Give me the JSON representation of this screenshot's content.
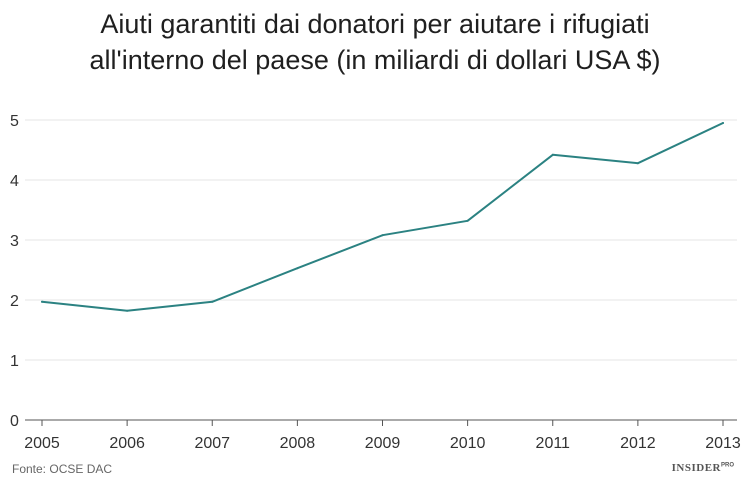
{
  "chart_data": {
    "type": "line",
    "title_lines": [
      "Aiuti garantiti dai donatori per aiutare i rifugiati",
      "all'interno del paese (in miliardi di dollari USA $)"
    ],
    "x": [
      "2005",
      "2006",
      "2007",
      "2008",
      "2009",
      "2010",
      "2011",
      "2012",
      "2013"
    ],
    "series": [
      {
        "values": [
          1.97,
          1.82,
          1.97,
          2.53,
          3.08,
          3.32,
          4.42,
          4.28,
          4.95
        ]
      }
    ],
    "yticks": [
      0,
      1,
      2,
      3,
      4,
      5
    ],
    "ylim": [
      0,
      5
    ],
    "grid": true,
    "line_color": "#2b8282",
    "grid_color": "#e6e6e6"
  },
  "footer": {
    "source": "Fonte: OCSE DAC",
    "logo": "INSIDER",
    "logo_sup": "PRO"
  }
}
